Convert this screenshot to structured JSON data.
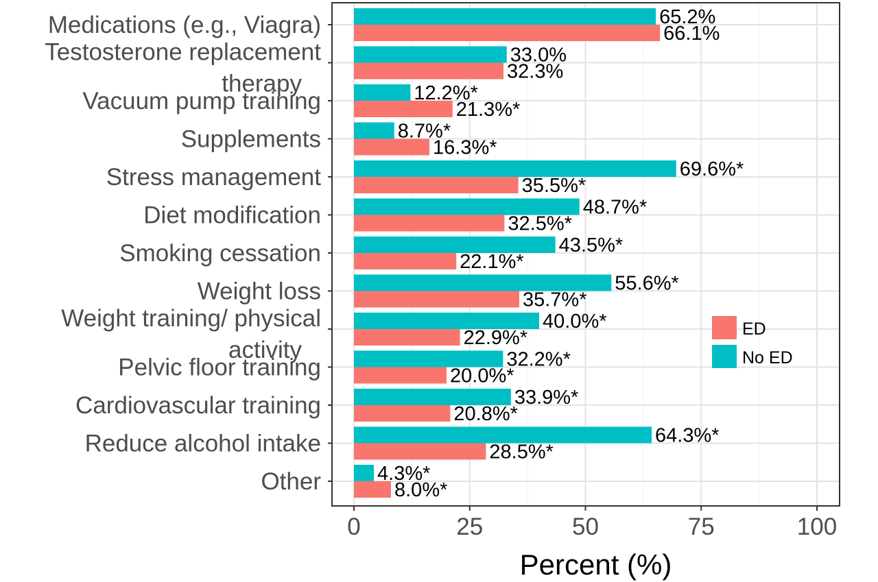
{
  "chart_data": {
    "type": "bar",
    "orientation": "horizontal",
    "categories": [
      [
        "Medications (e.g., Viagra)"
      ],
      [
        "Testosterone replacement",
        "therapy"
      ],
      [
        "Vacuum pump training"
      ],
      [
        "Supplements"
      ],
      [
        "Stress management"
      ],
      [
        "Diet modification"
      ],
      [
        "Smoking cessation"
      ],
      [
        "Weight loss"
      ],
      [
        "Weight training/ physical",
        "activity"
      ],
      [
        "Pelvic floor training"
      ],
      [
        "Cardiovascular training"
      ],
      [
        "Reduce alcohol intake"
      ],
      [
        "Other"
      ]
    ],
    "series": [
      {
        "name": "No ED",
        "color": "#00BFC4",
        "values": [
          65.2,
          33.0,
          12.2,
          8.7,
          69.6,
          48.7,
          43.5,
          55.6,
          40.0,
          32.2,
          33.9,
          64.3,
          4.3
        ],
        "labels": [
          "65.2%",
          "33.0%",
          "12.2%*",
          "8.7%*",
          "69.6%*",
          "48.7%*",
          "43.5%*",
          "55.6%*",
          "40.0%*",
          "32.2%*",
          "33.9%*",
          "64.3%*",
          "4.3%*"
        ]
      },
      {
        "name": "ED",
        "color": "#F8766D",
        "values": [
          66.1,
          32.3,
          21.3,
          16.3,
          35.5,
          32.5,
          22.1,
          35.7,
          22.9,
          20.0,
          20.8,
          28.5,
          8.0
        ],
        "labels": [
          "66.1%",
          "32.3%",
          "21.3%*",
          "16.3%*",
          "35.5%*",
          "32.5%*",
          "22.1%*",
          "35.7%*",
          "22.9%*",
          "20.0%*",
          "20.8%*",
          "28.5%*",
          "8.0%*"
        ]
      }
    ],
    "xlabel": "Percent (%)",
    "xlim": [
      0,
      100
    ],
    "xticks": [
      "0",
      "25",
      "50",
      "75",
      "100"
    ],
    "grid": true,
    "legend": {
      "placement": "right-middle",
      "entries": [
        "ED",
        "No ED"
      ]
    }
  }
}
